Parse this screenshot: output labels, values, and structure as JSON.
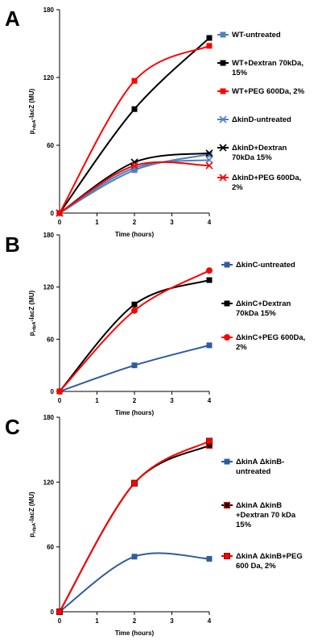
{
  "chart_data": [
    {
      "panel_label": "A",
      "type": "line",
      "x": [
        0,
        2,
        4
      ],
      "xticks": [
        0,
        1,
        2,
        3,
        4
      ],
      "xlim": [
        0,
        4
      ],
      "ylim": [
        0,
        180
      ],
      "yticks": [
        0,
        60,
        120,
        180
      ],
      "xlabel": "Time (hours)",
      "ylabel_main": "p",
      "ylabel_sub": "rdpA",
      "ylabel_rest": "-lacZ (MU)",
      "grid": false,
      "legend_position": "right",
      "series": [
        {
          "name": "WT-untreated",
          "name_lines": [
            "WT-untreated"
          ],
          "color": "#4f81bd",
          "marker": "square",
          "values": [
            0,
            38,
            52
          ]
        },
        {
          "name": "WT+Dextran 70kDa, 15%",
          "name_lines": [
            "WT+Dextran 70kDa,",
            "15%"
          ],
          "color": "#000000",
          "marker": "square",
          "values": [
            0,
            92,
            155
          ]
        },
        {
          "name": "WT+PEG 600Da, 2%",
          "name_lines": [
            "WT+PEG 600Da, 2%"
          ],
          "color": "#ff0000",
          "marker": "square",
          "values": [
            0,
            117,
            148
          ]
        },
        {
          "name": "ΔkinD-untreated",
          "name_lines": [
            "ΔkinD-untreated"
          ],
          "color": "#4f81bd",
          "marker": "x",
          "values": [
            0,
            40,
            47
          ]
        },
        {
          "name": "ΔkinD+Dextran 70kDa 15%",
          "name_lines": [
            "ΔkinD+Dextran",
            "70kDa 15%"
          ],
          "color": "#000000",
          "marker": "x",
          "values": [
            0,
            45,
            53
          ]
        },
        {
          "name": "ΔkinD+PEG 600Da, 2%",
          "name_lines": [
            "ΔkinD+PEG 600Da,",
            "2%"
          ],
          "color": "#ff0000",
          "marker": "x",
          "values": [
            0,
            42,
            42
          ]
        }
      ]
    },
    {
      "panel_label": "B",
      "type": "line",
      "x": [
        0,
        2,
        4
      ],
      "xticks": [
        0,
        1,
        2,
        3,
        4
      ],
      "xlim": [
        0,
        4
      ],
      "ylim": [
        0,
        180
      ],
      "yticks": [
        0,
        60,
        120,
        180
      ],
      "xlabel": "Time (hours)",
      "ylabel_main": "p",
      "ylabel_sub": "rdpA",
      "ylabel_rest": "-lacZ (MU)",
      "grid": false,
      "legend_position": "right",
      "series": [
        {
          "name": "ΔkinC-untreated",
          "name_lines": [
            "ΔkinC-untreated"
          ],
          "color": "#2e5c9e",
          "marker": "square",
          "values": [
            0,
            30,
            53
          ]
        },
        {
          "name": "ΔkinC+Dextran 70kDa 15%",
          "name_lines": [
            "ΔkinC+Dextran",
            "70kDa 15%"
          ],
          "color": "#000000",
          "marker": "square",
          "values": [
            0,
            100,
            128
          ]
        },
        {
          "name": "ΔkinC+PEG 600Da, 2%",
          "name_lines": [
            "ΔkinC+PEG 600Da,",
            "2%"
          ],
          "color": "#ff0000",
          "marker": "circle",
          "values": [
            0,
            93,
            139
          ]
        }
      ]
    },
    {
      "panel_label": "C",
      "type": "line",
      "x": [
        0,
        2,
        4
      ],
      "xticks": [
        0,
        1,
        2,
        3,
        4
      ],
      "xlim": [
        0,
        4
      ],
      "ylim": [
        0,
        180
      ],
      "yticks": [
        0,
        60,
        120,
        180
      ],
      "xlabel": "Time (hours)",
      "ylabel_main": "p",
      "ylabel_sub": "rdpA",
      "ylabel_rest": "-lacZ (MU)",
      "grid": false,
      "legend_position": "right",
      "series": [
        {
          "name": "ΔkinA ΔkinB-untreated",
          "name_lines": [
            "ΔkinA ΔkinB-",
            "untreated"
          ],
          "color": "#2e5c9e",
          "marker": "square",
          "values": [
            0,
            51,
            49
          ]
        },
        {
          "name": "ΔkinA ΔkinB +Dextran 70 kDa 15%",
          "name_lines": [
            "ΔkinA ΔkinB",
            "+Dextran 70 kDa",
            "15%"
          ],
          "color": "#000000",
          "marker": "square-red",
          "values": [
            0,
            119,
            154
          ]
        },
        {
          "name": "ΔkinA ΔkinB+PEG 600 Da, 2%",
          "name_lines": [
            "ΔkinA ΔkinB+PEG",
            "600 Da, 2%"
          ],
          "color": "#ff0000",
          "marker": "square-dark",
          "values": [
            0,
            119,
            158
          ]
        }
      ]
    }
  ]
}
